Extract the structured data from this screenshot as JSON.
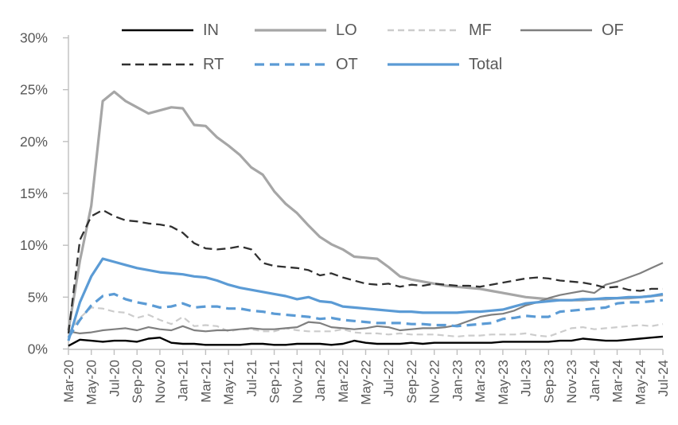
{
  "legend": {
    "rows": [
      [
        "IN",
        "LO",
        "MF",
        "OF"
      ],
      [
        "RT",
        "OT",
        "Total"
      ]
    ]
  },
  "y_axis": {
    "tick_labels": [
      "30%",
      "25%",
      "20%",
      "15%",
      "10%",
      "5%",
      "0%"
    ],
    "tick_values": [
      30,
      25,
      20,
      15,
      10,
      5,
      0
    ]
  },
  "x_axis": {
    "tick_labels": [
      "Mar-20",
      "May-20",
      "Jul-20",
      "Sep-20",
      "Nov-20",
      "Jan-21",
      "Mar-21",
      "May-21",
      "Jul-21",
      "Sep-21",
      "Nov-21",
      "Jan-22",
      "Mar-22",
      "May-22",
      "Jul-22",
      "Sep-22",
      "Nov-22",
      "Jan-23",
      "Mar-23",
      "May-23",
      "Jul-23",
      "Sep-23",
      "Nov-23",
      "Jan-24",
      "Mar-24",
      "May-24",
      "Jul-24"
    ]
  },
  "colors": {
    "axis_line": "#BFBFBF",
    "tick_mark": "#BFBFBF",
    "label_text": "#595959",
    "accent_blue": "#5B9BD5"
  },
  "chart_data": {
    "type": "line",
    "title": "",
    "xlabel": "",
    "ylabel": "",
    "y_unit": "%",
    "ylim": [
      0,
      30
    ],
    "grid": "off",
    "legend_position": "top",
    "x": [
      "Mar-20",
      "Apr-20",
      "May-20",
      "Jun-20",
      "Jul-20",
      "Aug-20",
      "Sep-20",
      "Oct-20",
      "Nov-20",
      "Dec-20",
      "Jan-21",
      "Feb-21",
      "Mar-21",
      "Apr-21",
      "May-21",
      "Jun-21",
      "Jul-21",
      "Aug-21",
      "Sep-21",
      "Oct-21",
      "Nov-21",
      "Dec-21",
      "Jan-22",
      "Feb-22",
      "Mar-22",
      "Apr-22",
      "May-22",
      "Jun-22",
      "Jul-22",
      "Aug-22",
      "Sep-22",
      "Oct-22",
      "Nov-22",
      "Dec-22",
      "Jan-23",
      "Feb-23",
      "Mar-23",
      "Apr-23",
      "May-23",
      "Jun-23",
      "Jul-23",
      "Aug-23",
      "Sep-23",
      "Oct-23",
      "Nov-23",
      "Dec-23",
      "Jan-24",
      "Feb-24",
      "Mar-24",
      "Apr-24",
      "May-24",
      "Jun-24",
      "Jul-24"
    ],
    "series": [
      {
        "name": "MF",
        "color": "#CCCCCC",
        "width": 2.2,
        "dash": "8 5",
        "values": [
          1.5,
          3.0,
          4.0,
          3.9,
          3.6,
          3.5,
          3.0,
          3.3,
          2.8,
          2.4,
          3.1,
          2.2,
          2.3,
          2.2,
          1.7,
          1.9,
          1.9,
          1.7,
          1.7,
          2.0,
          1.8,
          1.7,
          1.7,
          1.7,
          1.9,
          1.6,
          1.5,
          1.5,
          1.4,
          1.5,
          1.4,
          1.4,
          1.4,
          1.3,
          1.2,
          1.3,
          1.3,
          1.4,
          1.4,
          1.4,
          1.5,
          1.3,
          1.2,
          1.6,
          2.0,
          2.1,
          1.9,
          2.0,
          2.1,
          2.2,
          2.3,
          2.2,
          2.4
        ]
      },
      {
        "name": "LO",
        "color": "#A6A6A6",
        "width": 3.2,
        "dash": null,
        "values": [
          1.8,
          8.5,
          13.8,
          23.9,
          24.8,
          23.9,
          23.3,
          22.7,
          23.0,
          23.3,
          23.2,
          21.6,
          21.5,
          20.4,
          19.6,
          18.7,
          17.5,
          16.8,
          15.2,
          14.0,
          13.1,
          11.9,
          10.8,
          10.1,
          9.6,
          8.9,
          8.8,
          8.7,
          7.9,
          7.0,
          6.7,
          6.5,
          6.3,
          6.1,
          6.0,
          5.9,
          5.8,
          5.6,
          5.4,
          5.2,
          5.0,
          4.9,
          4.8,
          4.7,
          4.7,
          4.7,
          4.8,
          4.8,
          4.9,
          4.9,
          5.0,
          5.1,
          5.2
        ]
      },
      {
        "name": "OF",
        "color": "#7F7F7F",
        "width": 2.2,
        "dash": null,
        "values": [
          1.7,
          1.5,
          1.6,
          1.8,
          1.9,
          2.0,
          1.8,
          2.1,
          1.9,
          1.8,
          2.2,
          1.8,
          1.7,
          1.8,
          1.8,
          1.9,
          2.0,
          1.9,
          1.9,
          2.0,
          2.1,
          2.6,
          2.5,
          2.1,
          2.0,
          1.9,
          2.0,
          2.2,
          2.1,
          1.8,
          1.9,
          2.0,
          2.0,
          2.1,
          2.3,
          2.7,
          3.1,
          3.3,
          3.4,
          3.7,
          4.2,
          4.5,
          4.9,
          5.2,
          5.4,
          5.6,
          5.4,
          6.2,
          6.5,
          6.9,
          7.3,
          7.8,
          8.3
        ]
      },
      {
        "name": "RT",
        "color": "#303030",
        "width": 2.3,
        "dash": "11 6",
        "values": [
          1.5,
          10.5,
          12.8,
          13.4,
          12.8,
          12.4,
          12.3,
          12.1,
          12.0,
          11.8,
          11.2,
          10.2,
          9.7,
          9.6,
          9.7,
          9.9,
          9.6,
          8.3,
          8.0,
          7.9,
          7.8,
          7.6,
          7.1,
          7.3,
          6.9,
          6.6,
          6.3,
          6.2,
          6.3,
          6.0,
          6.2,
          6.1,
          6.3,
          6.2,
          6.1,
          6.1,
          6.0,
          6.2,
          6.4,
          6.6,
          6.8,
          6.9,
          6.8,
          6.6,
          6.5,
          6.4,
          6.2,
          5.9,
          6.0,
          5.7,
          5.6,
          5.8,
          5.8
        ]
      },
      {
        "name": "OT",
        "color": "#5B9BD5",
        "width": 3.2,
        "dash": "12 7",
        "values": [
          1.1,
          2.8,
          4.2,
          5.1,
          5.3,
          4.8,
          4.5,
          4.3,
          4.0,
          4.1,
          4.4,
          4.0,
          4.1,
          4.1,
          3.9,
          3.9,
          3.7,
          3.6,
          3.4,
          3.3,
          3.2,
          3.1,
          2.9,
          3.0,
          2.8,
          2.7,
          2.6,
          2.5,
          2.5,
          2.5,
          2.4,
          2.4,
          2.3,
          2.3,
          2.2,
          2.3,
          2.4,
          2.5,
          2.9,
          3.0,
          3.2,
          3.1,
          3.1,
          3.6,
          3.7,
          3.8,
          3.9,
          4.0,
          4.4,
          4.5,
          4.5,
          4.6,
          4.7
        ]
      },
      {
        "name": "IN",
        "color": "#000000",
        "width": 2.4,
        "dash": null,
        "values": [
          0.3,
          0.9,
          0.8,
          0.7,
          0.8,
          0.8,
          0.7,
          1.0,
          1.1,
          0.6,
          0.5,
          0.5,
          0.4,
          0.4,
          0.4,
          0.4,
          0.5,
          0.5,
          0.4,
          0.4,
          0.5,
          0.5,
          0.5,
          0.4,
          0.5,
          0.8,
          0.6,
          0.5,
          0.5,
          0.5,
          0.6,
          0.5,
          0.6,
          0.6,
          0.6,
          0.6,
          0.6,
          0.6,
          0.7,
          0.7,
          0.7,
          0.7,
          0.7,
          0.8,
          0.8,
          1.0,
          0.9,
          0.8,
          0.8,
          0.9,
          1.0,
          1.1,
          1.2
        ]
      },
      {
        "name": "Total",
        "color": "#5B9BD5",
        "width": 3.2,
        "dash": null,
        "values": [
          0.8,
          4.5,
          7.0,
          8.7,
          8.4,
          8.1,
          7.8,
          7.6,
          7.4,
          7.3,
          7.2,
          7.0,
          6.9,
          6.6,
          6.2,
          5.9,
          5.7,
          5.5,
          5.3,
          5.1,
          4.8,
          5.0,
          4.6,
          4.5,
          4.1,
          4.0,
          3.9,
          3.8,
          3.7,
          3.6,
          3.6,
          3.5,
          3.5,
          3.5,
          3.5,
          3.6,
          3.6,
          3.7,
          3.8,
          4.1,
          4.4,
          4.5,
          4.6,
          4.7,
          4.7,
          4.8,
          4.8,
          4.9,
          4.9,
          5.0,
          5.0,
          5.1,
          5.3
        ]
      }
    ]
  }
}
